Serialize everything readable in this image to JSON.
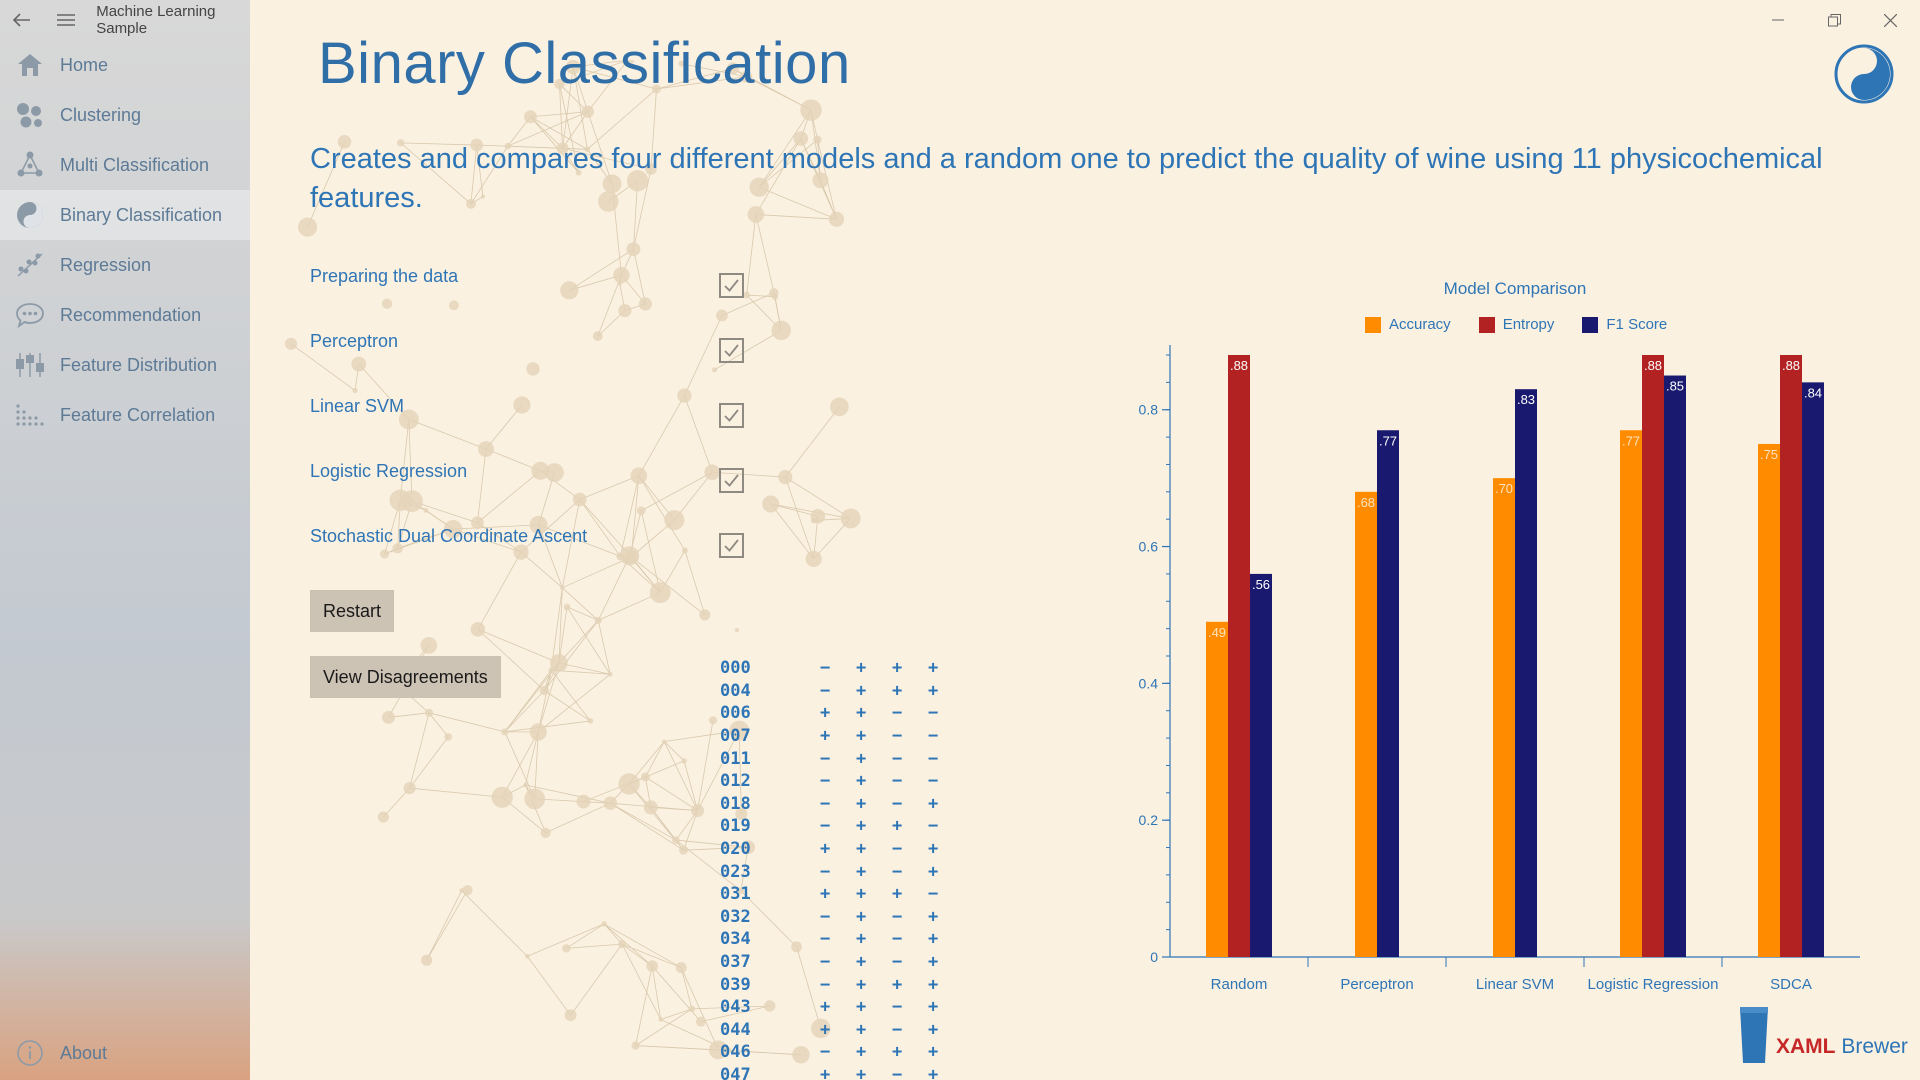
{
  "app": {
    "title": "Machine Learning Sample"
  },
  "sidebar": {
    "items": [
      {
        "label": "Home",
        "icon": "home-icon"
      },
      {
        "label": "Clustering",
        "icon": "clustering-icon"
      },
      {
        "label": "Multi Classification",
        "icon": "multi-classification-icon"
      },
      {
        "label": "Binary Classification",
        "icon": "binary-classification-icon",
        "active": true
      },
      {
        "label": "Regression",
        "icon": "regression-icon"
      },
      {
        "label": "Recommendation",
        "icon": "recommendation-icon"
      },
      {
        "label": "Feature Distribution",
        "icon": "feature-distribution-icon"
      },
      {
        "label": "Feature Correlation",
        "icon": "feature-correlation-icon"
      }
    ],
    "about_label": "About"
  },
  "page": {
    "title": "Binary Classification",
    "description": "Creates and compares four different models and a random one to predict the quality of wine using 11 physicochemical features."
  },
  "steps": [
    {
      "label": "Preparing the data",
      "checked": true
    },
    {
      "label": "Perceptron",
      "checked": true
    },
    {
      "label": "Linear SVM",
      "checked": true
    },
    {
      "label": "Logistic Regression",
      "checked": true
    },
    {
      "label": "Stochastic Dual Coordinate Ascent",
      "checked": true
    }
  ],
  "buttons": {
    "restart_label": "Restart",
    "view_disagreements_label": "View Disagreements"
  },
  "disagreements": [
    {
      "id": "000",
      "signs": [
        "−",
        "+",
        "+",
        "+"
      ]
    },
    {
      "id": "004",
      "signs": [
        "−",
        "+",
        "+",
        "+"
      ]
    },
    {
      "id": "006",
      "signs": [
        "+",
        "+",
        "−",
        "−"
      ]
    },
    {
      "id": "007",
      "signs": [
        "+",
        "+",
        "−",
        "−"
      ]
    },
    {
      "id": "011",
      "signs": [
        "−",
        "+",
        "−",
        "−"
      ]
    },
    {
      "id": "012",
      "signs": [
        "−",
        "+",
        "−",
        "−"
      ]
    },
    {
      "id": "018",
      "signs": [
        "−",
        "+",
        "−",
        "+"
      ]
    },
    {
      "id": "019",
      "signs": [
        "−",
        "+",
        "+",
        "−"
      ]
    },
    {
      "id": "020",
      "signs": [
        "+",
        "+",
        "−",
        "+"
      ]
    },
    {
      "id": "023",
      "signs": [
        "−",
        "+",
        "−",
        "+"
      ]
    },
    {
      "id": "031",
      "signs": [
        "+",
        "+",
        "+",
        "−"
      ]
    },
    {
      "id": "032",
      "signs": [
        "−",
        "+",
        "−",
        "+"
      ]
    },
    {
      "id": "034",
      "signs": [
        "−",
        "+",
        "−",
        "+"
      ]
    },
    {
      "id": "037",
      "signs": [
        "−",
        "+",
        "−",
        "+"
      ]
    },
    {
      "id": "039",
      "signs": [
        "−",
        "+",
        "+",
        "+"
      ]
    },
    {
      "id": "043",
      "signs": [
        "+",
        "+",
        "−",
        "+"
      ]
    },
    {
      "id": "044",
      "signs": [
        "+",
        "+",
        "−",
        "+"
      ]
    },
    {
      "id": "046",
      "signs": [
        "−",
        "+",
        "+",
        "+"
      ]
    },
    {
      "id": "047",
      "signs": [
        "+",
        "+",
        "−",
        "+"
      ]
    }
  ],
  "chart_data": {
    "type": "bar",
    "title": "Model Comparison",
    "categories": [
      "Random",
      "Perceptron",
      "Linear SVM",
      "Logistic Regression",
      "SDCA"
    ],
    "series": [
      {
        "name": "Accuracy",
        "color": "#ff8c00",
        "values": [
          0.49,
          0.68,
          0.7,
          0.77,
          0.75
        ],
        "labels": [
          ".49",
          ".68",
          ".70",
          ".77",
          ".75"
        ]
      },
      {
        "name": "Entropy",
        "color": "#b22222",
        "values": [
          0.88,
          null,
          null,
          0.88,
          0.88
        ],
        "labels": [
          ".88",
          "",
          "",
          ".88",
          ".88"
        ]
      },
      {
        "name": "F1 Score",
        "color": "#191970",
        "values": [
          0.56,
          0.77,
          0.83,
          0.85,
          0.84
        ],
        "labels": [
          ".56",
          ".77",
          ".83",
          ".85",
          ".84"
        ]
      }
    ],
    "ylim": [
      0,
      0.88
    ],
    "yticks": [
      0,
      0.2,
      0.4,
      0.6,
      0.8
    ],
    "ytick_labels": [
      "0",
      "0.2",
      "0.4",
      "0.6",
      "0.8"
    ],
    "legend_position": "top-center",
    "grid": false
  },
  "footer": {
    "brand_part1": "XAML",
    "brand_part2": "Brewer"
  },
  "colors": {
    "accent": "#2e75b6",
    "background": "#fbf1e1"
  }
}
